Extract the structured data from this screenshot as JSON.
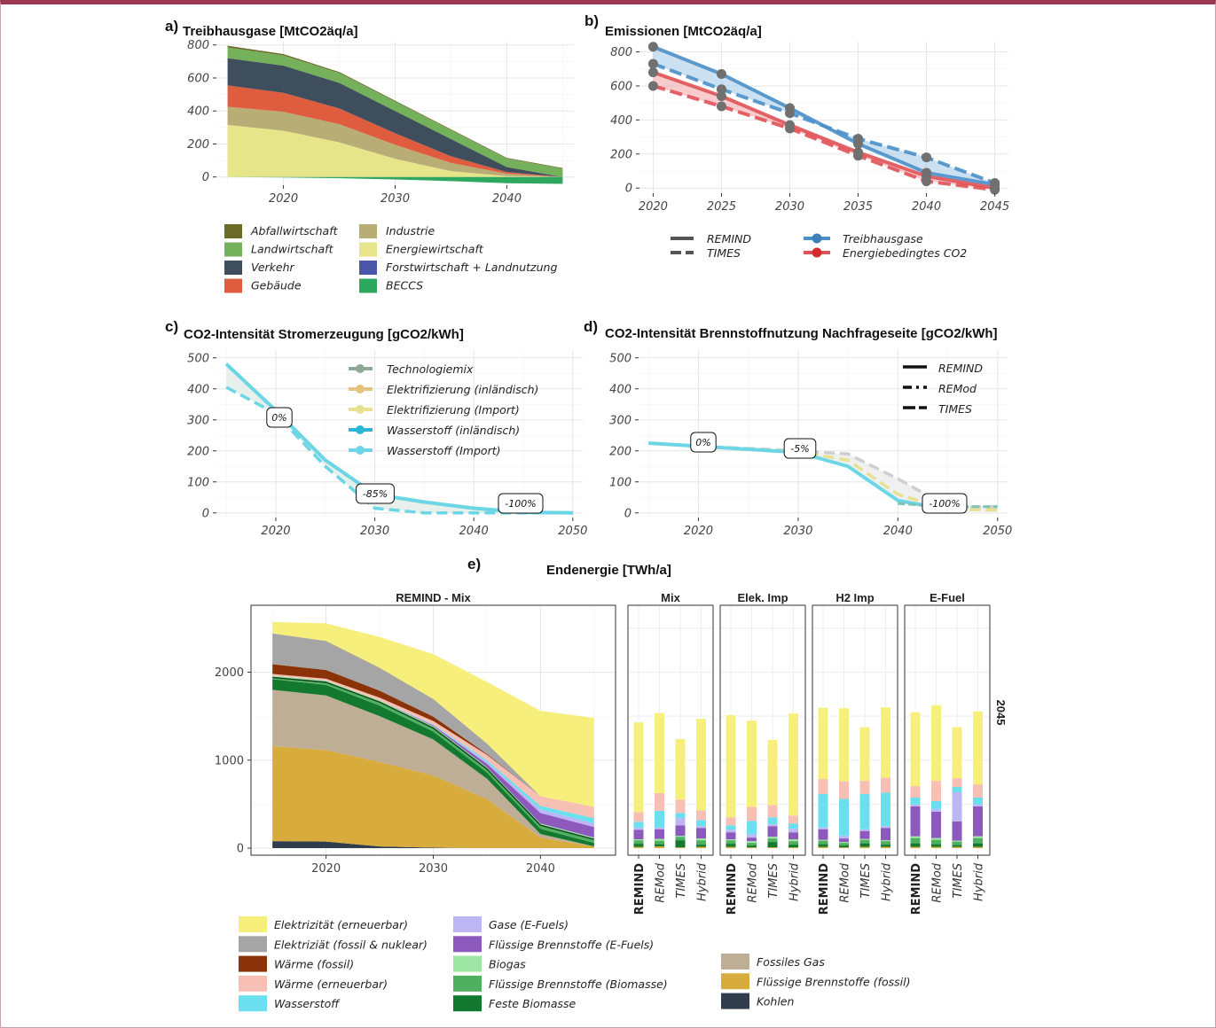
{
  "panels": {
    "a": {
      "letter": "a)",
      "title": "Treibhausgase [MtCO2äq/a]"
    },
    "b": {
      "letter": "b)",
      "title": "Emissionen [MtCO2äq/a]"
    },
    "c": {
      "letter": "c)",
      "title": "CO2-Intensität Stromerzeugung [gCO2/kWh]"
    },
    "d": {
      "letter": "d)",
      "title": "CO2-Intensität Brennstoffnutzung Nachfrageseite [gCO2/kWh]"
    },
    "e": {
      "letter": "e)",
      "title": "Endenergie [TWh/a]"
    }
  },
  "chart_data": [
    {
      "id": "a",
      "type": "area",
      "title": "Treibhausgase [MtCO2äq/a]",
      "x": [
        2015,
        2020,
        2025,
        2030,
        2035,
        2040,
        2045
      ],
      "xticks": [
        2020,
        2030,
        2040
      ],
      "yticks": [
        0,
        200,
        400,
        600,
        800
      ],
      "xlim": [
        2014,
        2046
      ],
      "ylim": [
        -50,
        820
      ],
      "grid": true,
      "stack_order": [
        "Energiewirtschaft",
        "Industrie",
        "Gebäude",
        "Verkehr",
        "Landwirtschaft",
        "Abfallwirtschaft"
      ],
      "series": [
        {
          "name": "Abfallwirtschaft",
          "color": "#6b6b28",
          "values": [
            10,
            8,
            6,
            5,
            4,
            4,
            4
          ]
        },
        {
          "name": "Landwirtschaft",
          "color": "#74b15a",
          "values": [
            65,
            62,
            60,
            57,
            55,
            52,
            50
          ]
        },
        {
          "name": "Verkehr",
          "color": "#3f4e5c",
          "values": [
            165,
            165,
            155,
            135,
            105,
            30,
            0
          ]
        },
        {
          "name": "Gebäude",
          "color": "#e05c3f",
          "values": [
            130,
            115,
            95,
            70,
            40,
            10,
            0
          ]
        },
        {
          "name": "Industrie",
          "color": "#b8ad74",
          "values": [
            110,
            115,
            110,
            85,
            50,
            15,
            0
          ]
        },
        {
          "name": "Energiewirtschaft",
          "color": "#e7e58a",
          "values": [
            315,
            280,
            210,
            110,
            35,
            5,
            0
          ]
        },
        {
          "name": "Forstwirtschaft + Landnutzung",
          "color": "#4a56aa",
          "values": [
            0,
            0,
            0,
            0,
            0,
            0,
            0
          ]
        },
        {
          "name": "BECCS",
          "color": "#2ea85f",
          "values": [
            0,
            -3,
            -8,
            -15,
            -25,
            -38,
            -42
          ]
        }
      ],
      "legend_left": [
        "Abfallwirtschaft",
        "Landwirtschaft",
        "Verkehr",
        "Gebäude"
      ],
      "legend_right": [
        "Industrie",
        "Energiewirtschaft",
        "Forstwirtschaft + Landnutzung",
        "BECCS"
      ]
    },
    {
      "id": "b",
      "type": "line",
      "title": "Emissionen [MtCO2äq/a]",
      "x": [
        2020,
        2025,
        2030,
        2035,
        2040,
        2045
      ],
      "xticks": [
        2020,
        2025,
        2030,
        2035,
        2040,
        2045
      ],
      "yticks": [
        0,
        200,
        400,
        600,
        800
      ],
      "xlim": [
        2019,
        2046
      ],
      "ylim": [
        -30,
        860
      ],
      "series": [
        {
          "name": "Treibhausgase",
          "model": "REMIND",
          "color": "#4a90c8",
          "values": [
            830,
            670,
            470,
            260,
            90,
            20
          ]
        },
        {
          "name": "Treibhausgase",
          "model": "TIMES",
          "color": "#4a90c8",
          "values": [
            730,
            580,
            440,
            290,
            180,
            30
          ]
        },
        {
          "name": "Energiebedingtes CO2",
          "model": "REMIND",
          "color": "#e05257",
          "values": [
            680,
            540,
            370,
            210,
            70,
            0
          ]
        },
        {
          "name": "Energiebedingtes CO2",
          "model": "TIMES",
          "color": "#e05257",
          "values": [
            600,
            480,
            350,
            190,
            40,
            -10
          ]
        }
      ],
      "legend_models": [
        "REMIND",
        "TIMES"
      ],
      "legend_gases": [
        "Treibhausgase",
        "Energiebedingtes CO2"
      ]
    },
    {
      "id": "c",
      "type": "line",
      "title": "CO2-Intensität Stromerzeugung [gCO2/kWh]",
      "x": [
        2015,
        2020,
        2025,
        2030,
        2035,
        2040,
        2045,
        2050
      ],
      "xticks": [
        2020,
        2030,
        2040,
        2050
      ],
      "yticks": [
        0,
        100,
        200,
        300,
        400,
        500
      ],
      "xlim": [
        2014,
        2051
      ],
      "ylim": [
        -15,
        525
      ],
      "series": [
        {
          "name": "Technologiemix",
          "color": "#8ea89a",
          "values": [
            480,
            330,
            170,
            60,
            35,
            15,
            2,
            0
          ]
        },
        {
          "name": "Elektrifizierung (inländisch)",
          "color": "#e6c37e",
          "values": [
            480,
            330,
            170,
            60,
            35,
            15,
            2,
            0
          ]
        },
        {
          "name": "Elektrifizierung (Import)",
          "color": "#e7e191",
          "values": [
            480,
            330,
            170,
            60,
            35,
            15,
            2,
            0
          ]
        },
        {
          "name": "Wasserstoff (inländisch)",
          "color": "#2bb5d6",
          "values": [
            480,
            330,
            170,
            60,
            35,
            15,
            2,
            0
          ]
        },
        {
          "name": "Wasserstoff (Import)",
          "color": "#6cd6e6",
          "values": [
            480,
            330,
            170,
            60,
            35,
            15,
            2,
            0
          ]
        },
        {
          "name": "Wasserstoff (Import) dashed",
          "color": "#6cd6e6",
          "values": [
            405,
            320,
            150,
            15,
            0,
            0,
            0,
            0
          ]
        }
      ],
      "annotations": [
        "0%",
        "-85%",
        "-100%"
      ]
    },
    {
      "id": "d",
      "type": "line",
      "title": "CO2-Intensität Brennstoffnutzung Nachfrageseite [gCO2/kWh]",
      "x": [
        2015,
        2020,
        2025,
        2030,
        2035,
        2040,
        2045,
        2050
      ],
      "xticks": [
        2020,
        2030,
        2040,
        2050
      ],
      "yticks": [
        0,
        100,
        200,
        300,
        400,
        500
      ],
      "xlim": [
        2014,
        2051
      ],
      "ylim": [
        -15,
        525
      ],
      "series": [
        {
          "name": "REMIND",
          "color": "#6cd6e6",
          "values": [
            225,
            215,
            205,
            195,
            150,
            40,
            10,
            0
          ]
        },
        {
          "name": "REMod",
          "color": "#cfcfcf",
          "values": [
            225,
            215,
            208,
            200,
            190,
            110,
            20,
            20
          ]
        },
        {
          "name": "TIMES",
          "color": "#e7e191",
          "values": [
            225,
            215,
            205,
            198,
            170,
            60,
            10,
            10
          ]
        }
      ],
      "legend": [
        "REMIND",
        "REMod",
        "TIMES"
      ],
      "annotations": [
        "0%",
        "-5%",
        "-100%"
      ]
    },
    {
      "id": "e-area",
      "type": "area",
      "title": "Endenergie [TWh/a]",
      "facet": "REMIND - Mix",
      "x": [
        2015,
        2020,
        2025,
        2030,
        2035,
        2040,
        2045
      ],
      "xticks": [
        2020,
        2030,
        2040
      ],
      "yticks": [
        0,
        1000,
        2000
      ],
      "xlim": [
        2013,
        2047
      ],
      "ylim": [
        -80,
        2760
      ],
      "series": [
        {
          "name": "Kohlen",
          "color": "#2f3d4d",
          "values": [
            80,
            75,
            20,
            5,
            0,
            0,
            0
          ]
        },
        {
          "name": "Flüssige Brennstoffe (fossil)",
          "color": "#d8ac3c",
          "values": [
            1080,
            1040,
            960,
            820,
            560,
            120,
            20
          ]
        },
        {
          "name": "Fossiles Gas",
          "color": "#bfae96",
          "values": [
            640,
            620,
            520,
            410,
            230,
            40,
            0
          ]
        },
        {
          "name": "Feste Biomasse",
          "color": "#13792f",
          "values": [
            120,
            120,
            120,
            90,
            70,
            60,
            40
          ]
        },
        {
          "name": "Flüssige Brennstoffe (Biomasse)",
          "color": "#4fb160",
          "values": [
            20,
            30,
            40,
            40,
            40,
            40,
            40
          ]
        },
        {
          "name": "Biogas",
          "color": "#9ee6a4",
          "values": [
            20,
            20,
            20,
            20,
            20,
            20,
            20
          ]
        },
        {
          "name": "Flüssige Brennstoffe (E-Fuels)",
          "color": "#8d59bc",
          "values": [
            0,
            0,
            0,
            10,
            40,
            120,
            120
          ]
        },
        {
          "name": "Gase (E-Fuels)",
          "color": "#bdb6f5",
          "values": [
            0,
            0,
            0,
            5,
            20,
            40,
            40
          ]
        },
        {
          "name": "Wasserstoff",
          "color": "#6bdfee",
          "values": [
            0,
            0,
            0,
            5,
            20,
            40,
            60
          ]
        },
        {
          "name": "Wärme (erneuerbar)",
          "color": "#f8c0b5",
          "values": [
            20,
            20,
            30,
            40,
            60,
            110,
            130
          ]
        },
        {
          "name": "Wärme (fossil)",
          "color": "#8c3209",
          "values": [
            110,
            100,
            80,
            50,
            10,
            0,
            0
          ]
        },
        {
          "name": "Elektriziät (fossil & nuklear)",
          "color": "#a5a5a5",
          "values": [
            350,
            330,
            260,
            200,
            120,
            0,
            0
          ]
        },
        {
          "name": "Elektrizität (erneuerbar)",
          "color": "#f7ef7c",
          "values": [
            130,
            200,
            350,
            510,
            700,
            970,
            1010
          ]
        }
      ]
    },
    {
      "id": "e-bars",
      "type": "bar",
      "year": "2045",
      "ylim": [
        -80,
        2760
      ],
      "categories": [
        "REMIND",
        "REMod",
        "TIMES",
        "Hybrid"
      ],
      "stack_order": [
        "Kohlen",
        "Flüssige Brennstoffe (fossil)",
        "Fossiles Gas",
        "Feste Biomasse",
        "Flüssige Brennstoffe (Biomasse)",
        "Biogas",
        "Flüssige Brennstoffe (E-Fuels)",
        "Gase (E-Fuels)",
        "Wasserstoff",
        "Wärme (erneuerbar)",
        "Elektrizität (erneuerbar)"
      ],
      "facets": [
        {
          "name": "Mix",
          "stacks": [
            [
              0,
              15,
              0,
              35,
              40,
              10,
              110,
              20,
              70,
              110,
              1020
            ],
            [
              0,
              20,
              0,
              25,
              40,
              20,
              110,
              20,
              190,
              200,
              910
            ],
            [
              0,
              10,
              0,
              80,
              40,
              10,
              120,
              80,
              60,
              150,
              690
            ],
            [
              0,
              15,
              0,
              25,
              50,
              20,
              120,
              20,
              70,
              110,
              1040
            ]
          ]
        },
        {
          "name": "Elek. Imp",
          "stacks": [
            [
              0,
              15,
              0,
              35,
              40,
              10,
              80,
              30,
              50,
              90,
              1160
            ],
            [
              0,
              10,
              0,
              20,
              30,
              20,
              40,
              40,
              150,
              160,
              980
            ],
            [
              0,
              10,
              0,
              60,
              40,
              20,
              120,
              20,
              80,
              140,
              740
            ],
            [
              0,
              10,
              0,
              30,
              40,
              20,
              80,
              40,
              60,
              90,
              1160
            ]
          ]
        },
        {
          "name": "H2 Imp",
          "stacks": [
            [
              0,
              15,
              0,
              30,
              40,
              10,
              120,
              20,
              380,
              170,
              810
            ],
            [
              0,
              10,
              0,
              20,
              30,
              10,
              40,
              30,
              420,
              200,
              830
            ],
            [
              0,
              15,
              0,
              40,
              40,
              10,
              90,
              20,
              400,
              150,
              610
            ],
            [
              0,
              15,
              0,
              25,
              40,
              10,
              140,
              20,
              380,
              170,
              800
            ]
          ]
        },
        {
          "name": "E-Fuel",
          "stacks": [
            [
              0,
              15,
              0,
              40,
              60,
              20,
              340,
              20,
              80,
              130,
              840
            ],
            [
              0,
              15,
              0,
              30,
              50,
              20,
              300,
              30,
              90,
              230,
              860
            ],
            [
              0,
              15,
              0,
              20,
              40,
              10,
              220,
              330,
              60,
              100,
              580
            ],
            [
              0,
              15,
              0,
              40,
              60,
              20,
              340,
              20,
              80,
              150,
              830
            ]
          ]
        }
      ]
    }
  ],
  "e_legend": [
    [
      "Elektrizität (erneuerbar)",
      "Elektriziät (fossil & nuklear)",
      "Wärme (fossil)",
      "Wärme (erneuerbar)",
      "Wasserstoff"
    ],
    [
      "Gase (E-Fuels)",
      "Flüssige Brennstoffe (E-Fuels)",
      "Biogas",
      "Flüssige Brennstoffe (Biomasse)",
      "Feste Biomasse"
    ],
    [
      "Fossiles Gas",
      "Flüssige Brennstoffe (fossil)",
      "Kohlen"
    ]
  ]
}
